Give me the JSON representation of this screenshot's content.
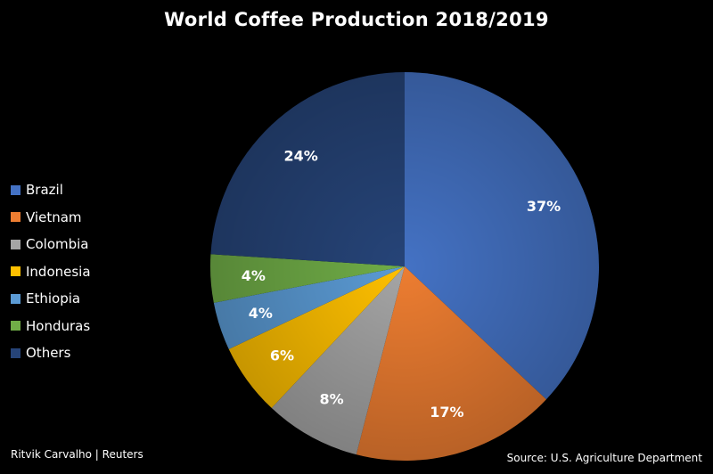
{
  "chart_data": {
    "type": "pie",
    "title": "World Coffee Production 2018/2019",
    "categories": [
      "Brazil",
      "Vietnam",
      "Colombia",
      "Indonesia",
      "Ethiopia",
      "Honduras",
      "Others"
    ],
    "values": [
      37,
      17,
      8,
      6,
      4,
      4,
      24
    ],
    "labels": [
      "37%",
      "17%",
      "8%",
      "6%",
      "4%",
      "4%",
      "24%"
    ],
    "colors": [
      "#4472c4",
      "#ed7d31",
      "#a5a5a5",
      "#ffc000",
      "#5b9bd5",
      "#70ad47",
      "#264478"
    ],
    "legend_position": "left",
    "credit": "Ritvik Carvalho | Reuters",
    "source": "Source: U.S. Agriculture Department"
  }
}
